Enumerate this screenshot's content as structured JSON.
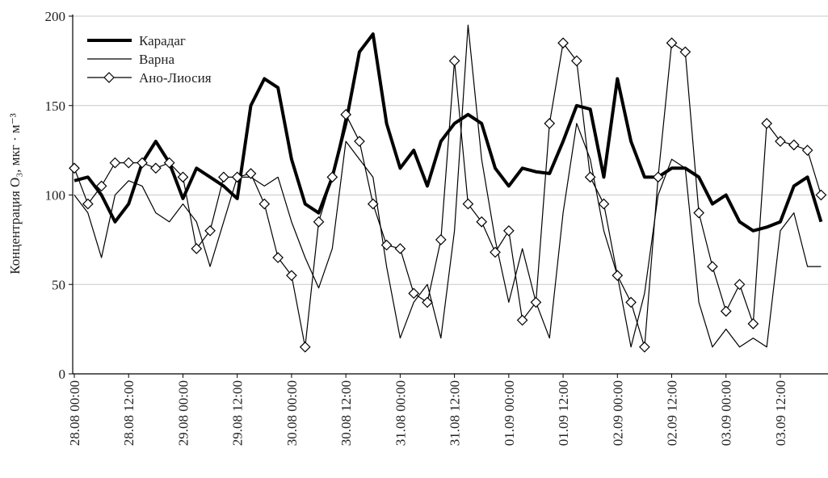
{
  "chart_data": {
    "type": "line",
    "y_label": "Концентрация O₃, мкг · м⁻³",
    "x": [
      0,
      3,
      6,
      9,
      12,
      15,
      18,
      21,
      24,
      27,
      30,
      33,
      36,
      39,
      42,
      45,
      48,
      51,
      54,
      57,
      60,
      63,
      66,
      69,
      72,
      75,
      78,
      81,
      84,
      87,
      90,
      93,
      96,
      99,
      102,
      105,
      108,
      111,
      114,
      117,
      120,
      123,
      126,
      129,
      132,
      135,
      138,
      141,
      144,
      147,
      150,
      153,
      156,
      159,
      162,
      165
    ],
    "series": [
      {
        "name": "Карадаг",
        "color": "#000000",
        "width": 4,
        "marker": false,
        "values": [
          108,
          110,
          100,
          85,
          95,
          118,
          130,
          118,
          98,
          115,
          110,
          105,
          98,
          150,
          165,
          160,
          120,
          95,
          90,
          110,
          140,
          180,
          190,
          140,
          115,
          125,
          105,
          130,
          140,
          145,
          140,
          115,
          105,
          115,
          113,
          112,
          130,
          150,
          148,
          110,
          165,
          130,
          110,
          110,
          115,
          115,
          110,
          95,
          100,
          85,
          80,
          82,
          85,
          105,
          110,
          85
        ]
      },
      {
        "name": "Варна",
        "color": "#000000",
        "width": 1.2,
        "marker": false,
        "values": [
          100,
          90,
          65,
          100,
          108,
          105,
          90,
          85,
          95,
          85,
          60,
          85,
          110,
          110,
          105,
          110,
          85,
          65,
          48,
          70,
          130,
          120,
          110,
          60,
          20,
          40,
          50,
          20,
          80,
          195,
          120,
          75,
          40,
          70,
          40,
          20,
          90,
          140,
          120,
          80,
          55,
          15,
          45,
          100,
          120,
          115,
          40,
          15,
          25,
          15,
          20,
          15,
          80,
          90,
          60,
          60
        ]
      },
      {
        "name": "Ано-Лиосия",
        "color": "#000000",
        "width": 1.2,
        "marker": true,
        "values": [
          115,
          95,
          105,
          118,
          118,
          118,
          115,
          118,
          110,
          70,
          80,
          110,
          110,
          112,
          95,
          65,
          55,
          15,
          85,
          110,
          145,
          130,
          95,
          72,
          70,
          45,
          40,
          75,
          175,
          95,
          85,
          68,
          80,
          30,
          40,
          140,
          185,
          175,
          110,
          95,
          55,
          40,
          15,
          110,
          185,
          180,
          90,
          60,
          35,
          50,
          28,
          140,
          130,
          128,
          125,
          100
        ]
      }
    ],
    "xlim": [
      0,
      166
    ],
    "xticks": [
      {
        "value": 0,
        "label": "28.08 00:00"
      },
      {
        "value": 12,
        "label": "28.08 12:00"
      },
      {
        "value": 24,
        "label": "29.08 00:00"
      },
      {
        "value": 36,
        "label": "29.08 12:00"
      },
      {
        "value": 48,
        "label": "30.08 00:00"
      },
      {
        "value": 60,
        "label": "30.08 12:00"
      },
      {
        "value": 72,
        "label": "31.08 00:00"
      },
      {
        "value": 84,
        "label": "31.08 12:00"
      },
      {
        "value": 96,
        "label": "01.09 00:00"
      },
      {
        "value": 108,
        "label": "01.09 12:00"
      },
      {
        "value": 120,
        "label": "02.09 00:00"
      },
      {
        "value": 132,
        "label": "02.09 12:00"
      },
      {
        "value": 144,
        "label": "03.09 00:00"
      },
      {
        "value": 156,
        "label": "03.09 12:00"
      }
    ],
    "ylim": [
      0,
      200
    ],
    "yticks": [
      0,
      50,
      100,
      150,
      200
    ],
    "grid": true,
    "legend": "upper left"
  }
}
